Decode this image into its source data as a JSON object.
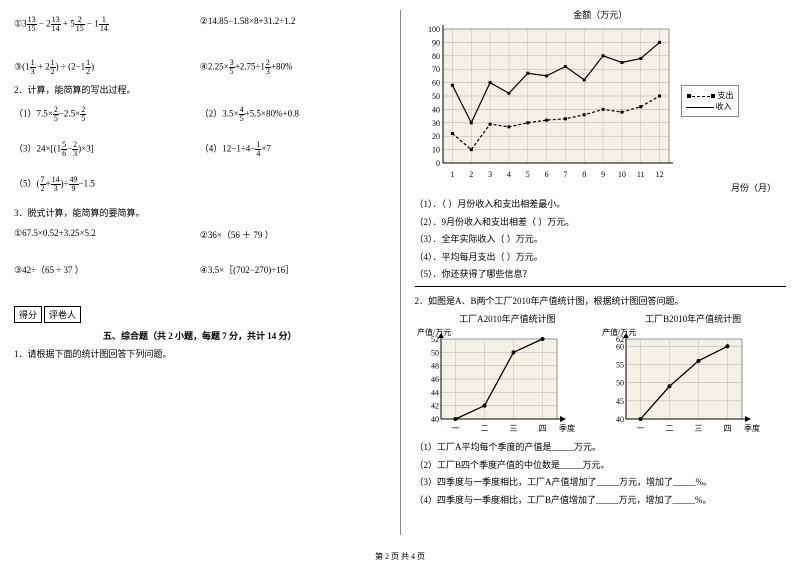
{
  "left": {
    "q1a": {
      "label": "①",
      "expr": "3 13/15 − 2 13/14 + 5 2/15 − 1 1/14"
    },
    "q1b": {
      "label": "②",
      "expr": "14.85−1.58×8+31.2÷1.2"
    },
    "q3": {
      "label": "③",
      "expr": "(1 1/3 + 2 1/2) ÷ (2−1 1/2)"
    },
    "q4": {
      "label": "④",
      "expr": "2.25× 3/5 +2.75÷1 2/3 +80%"
    },
    "sec2": "2．计算，能简算的写出过程。",
    "p1": {
      "label": "（1）",
      "expr": "7.5× 2/5 −2.5× 2/5"
    },
    "p2": {
      "label": "（2）",
      "expr": "3.5× 4/5 +5.5×80%+0.8"
    },
    "p3": {
      "label": "（3）",
      "expr": "24×[(1 5/6 − 2/3)×3]"
    },
    "p4": {
      "label": "（4）",
      "expr": "12−1÷4− 1/4 ×7"
    },
    "p5": {
      "label": "（5）",
      "expr": "(7/2 + 14/3)÷ 49/9 −1.5"
    },
    "sec3": "3．脱式计算，能简算的要简算。",
    "s1": {
      "label": "①",
      "expr": "67.5×0.52+3.25×5.2"
    },
    "s2": {
      "label": "②",
      "expr": "36×（56 ＋ 79 ）"
    },
    "s3": {
      "label": "③",
      "expr": "42÷（65 ÷ 37 ）"
    },
    "s4": {
      "label": "④",
      "expr": "3.5×［(702−270)÷16］"
    },
    "score_hdr1": "得分",
    "score_hdr2": "评卷人",
    "section5": "五、综合题（共 2 小题，每题 7 分，共计 14 分）",
    "q51": "1．请根据下面的统计图回答下列问题。"
  },
  "right": {
    "chart1": {
      "title": "金额（万元）",
      "xlabel": "月份（月）",
      "ymax": 100,
      "ytick": 10,
      "xlabels": [
        "1",
        "2",
        "3",
        "4",
        "5",
        "6",
        "7",
        "8",
        "9",
        "10",
        "11",
        "12"
      ],
      "income": [
        58,
        30,
        60,
        52,
        67,
        65,
        72,
        62,
        80,
        75,
        78,
        90
      ],
      "expense": [
        22,
        10,
        29,
        27,
        30,
        32,
        33,
        36,
        40,
        38,
        42,
        50
      ],
      "legend_income": "收入",
      "legend_expense": "支出",
      "bg": "#f5f0e6",
      "grid": "#999999",
      "line_color": "#000000"
    },
    "ques": {
      "a": "（1）．（  ）月份收入和支出相差最小。",
      "b": "（2）．9月份收入和支出相差（  ）万元。",
      "c": "（3）．全年实际收入（  ）万元。",
      "d": "（4）．平均每月支出（  ）万元。",
      "e": "（5）．你还获得了哪些信息？"
    },
    "q2intro": "2．如图是A、B两个工厂2010年产值统计图，根据统计图回答问题。",
    "chartA": {
      "title": "工厂A2010年产值统计图",
      "ylabel": "产值/万元",
      "xlabel": "季度",
      "yticks": [
        40,
        42,
        44,
        46,
        48,
        50,
        52
      ],
      "xlabels": [
        "一",
        "二",
        "三",
        "四"
      ],
      "values": [
        40,
        42,
        50,
        52
      ],
      "bg": "#f5f0e6"
    },
    "chartB": {
      "title": "工厂B2010年产值统计图",
      "ylabel": "产值/万元",
      "xlabel": "季度",
      "yticks": [
        40,
        45,
        50,
        55,
        60,
        62
      ],
      "xlabels": [
        "一",
        "二",
        "三",
        "四"
      ],
      "values": [
        40,
        49,
        56,
        60
      ],
      "bg": "#f5f0e6"
    },
    "subq": {
      "a": "（1）工厂A平均每个季度的产值是_____万元。",
      "b": "（2）工厂B四个季度产值的中位数是_____万元。",
      "c": "（3）四季度与一季度相比，工厂A产值增加了_____万元，增加了_____%。",
      "d": "（4）四季度与一季度相比，工厂B产值增加了_____万元，增加了_____%。"
    }
  },
  "footer": "第 2 页 共 4 页"
}
